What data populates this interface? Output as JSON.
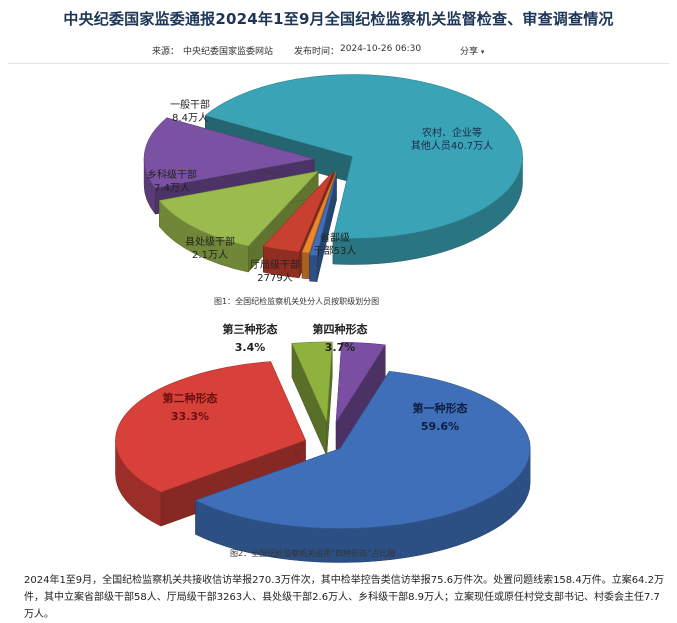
{
  "page": {
    "title": "中央纪委国家监委通报2024年1至9月全国纪检监察机关监督检查、审查调查情况",
    "source_label": "来源：",
    "source": "中央纪委国家监委网站",
    "published_label": "发布时间：",
    "published": "2024-10-26 06:30",
    "share": "分享",
    "body_line1": "2024年1至9月，全国纪检监察机关共接收信访举报270.3万件次，其中检举控告类信访举报75.6万件次。处置问题线索158.4万件。立案64.2万",
    "body_line2": "件，其中立案省部级干部58人、厅局级干部3263人、县处级干部2.6万人、乡科级干部8.9万人；立案现任或原任村党支部书记、村委会主任7.7万人。"
  },
  "chart_data": [
    {
      "type": "pie",
      "title": "图1：全国纪检监察机关处分人员按职级划分图",
      "slices": [
        {
          "name": "农村、企业等其他人员",
          "value": 407000,
          "label": [
            "农村、企业等",
            "其他人员40.7万人"
          ],
          "color": "#3aa3b5"
        },
        {
          "name": "省部级干部",
          "value": 53,
          "label": [
            "省部级",
            "干部53人"
          ],
          "color": "#3f6fb8"
        },
        {
          "name": "厅局级干部",
          "value": 2779,
          "label": [
            "厅局级干部",
            "2779人"
          ],
          "color": "#e8872c"
        },
        {
          "name": "县处级干部",
          "value": 21000,
          "label": [
            "县处级干部",
            "2.1万人"
          ],
          "color": "#c8402f"
        },
        {
          "name": "乡科级干部",
          "value": 74000,
          "label": [
            "乡科级干部",
            "7.4万人"
          ],
          "color": "#9bbb4e"
        },
        {
          "name": "一般干部",
          "value": 84000,
          "label": [
            "一般干部",
            "8.4万人"
          ],
          "color": "#7b52a3"
        }
      ]
    },
    {
      "type": "pie",
      "title": "图2：全国纪检监察机关运用“四种形态”占比图",
      "slices": [
        {
          "name": "第一种形态",
          "value": 59.6,
          "label": [
            "第一种形态",
            "59.6%"
          ],
          "color": "#3f6fb8"
        },
        {
          "name": "第二种形态",
          "value": 33.3,
          "label": [
            "第二种形态",
            "33.3%"
          ],
          "color": "#d8403a"
        },
        {
          "name": "第三种形态",
          "value": 3.4,
          "label": [
            "第三种形态",
            "3.4%"
          ],
          "color": "#8fb13d"
        },
        {
          "name": "第四种形态",
          "value": 3.7,
          "label": [
            "第四种形态",
            "3.7%"
          ],
          "color": "#7a4fa3"
        }
      ]
    }
  ]
}
